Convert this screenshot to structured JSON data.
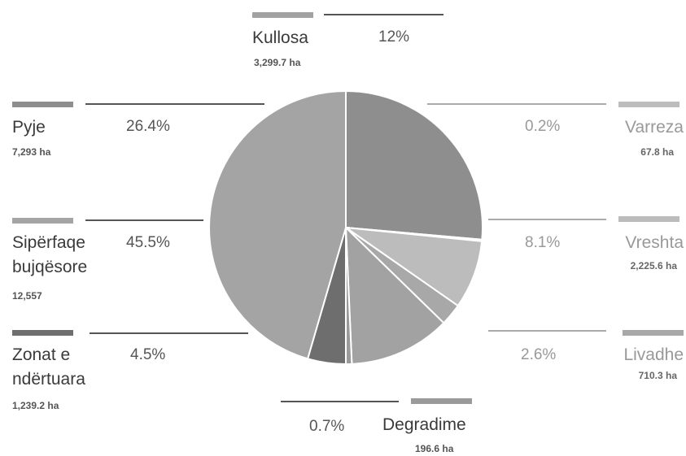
{
  "chart_data": {
    "type": "pie",
    "categories": [
      "Pyje",
      "Varreza",
      "Vreshta",
      "Livadhe",
      "Kullosa",
      "Degradime",
      "Zonat e ndërtuara",
      "Sipërfaqe bujqësore"
    ],
    "values": [
      26.4,
      0.2,
      8.1,
      2.6,
      12,
      0.7,
      4.5,
      45.5
    ],
    "value_labels": [
      "26.4%",
      "0.2%",
      "8.1%",
      "2.6%",
      "12%",
      "0.7%",
      "4.5%",
      "45.5%"
    ],
    "areas": [
      "7,293 ha",
      "67.8 ha",
      "2,225.6 ha",
      "710.3 ha",
      "3,299.7 ha",
      "196.6 ha",
      "1,239.2 ha",
      "12,557"
    ],
    "colors": [
      "#8e8e8e",
      "#bdbdbd",
      "#bcbcbc",
      "#a8a8a8",
      "#a2a2a2",
      "#9a9a9a",
      "#6e6e6e",
      "#a4a4a4"
    ]
  }
}
